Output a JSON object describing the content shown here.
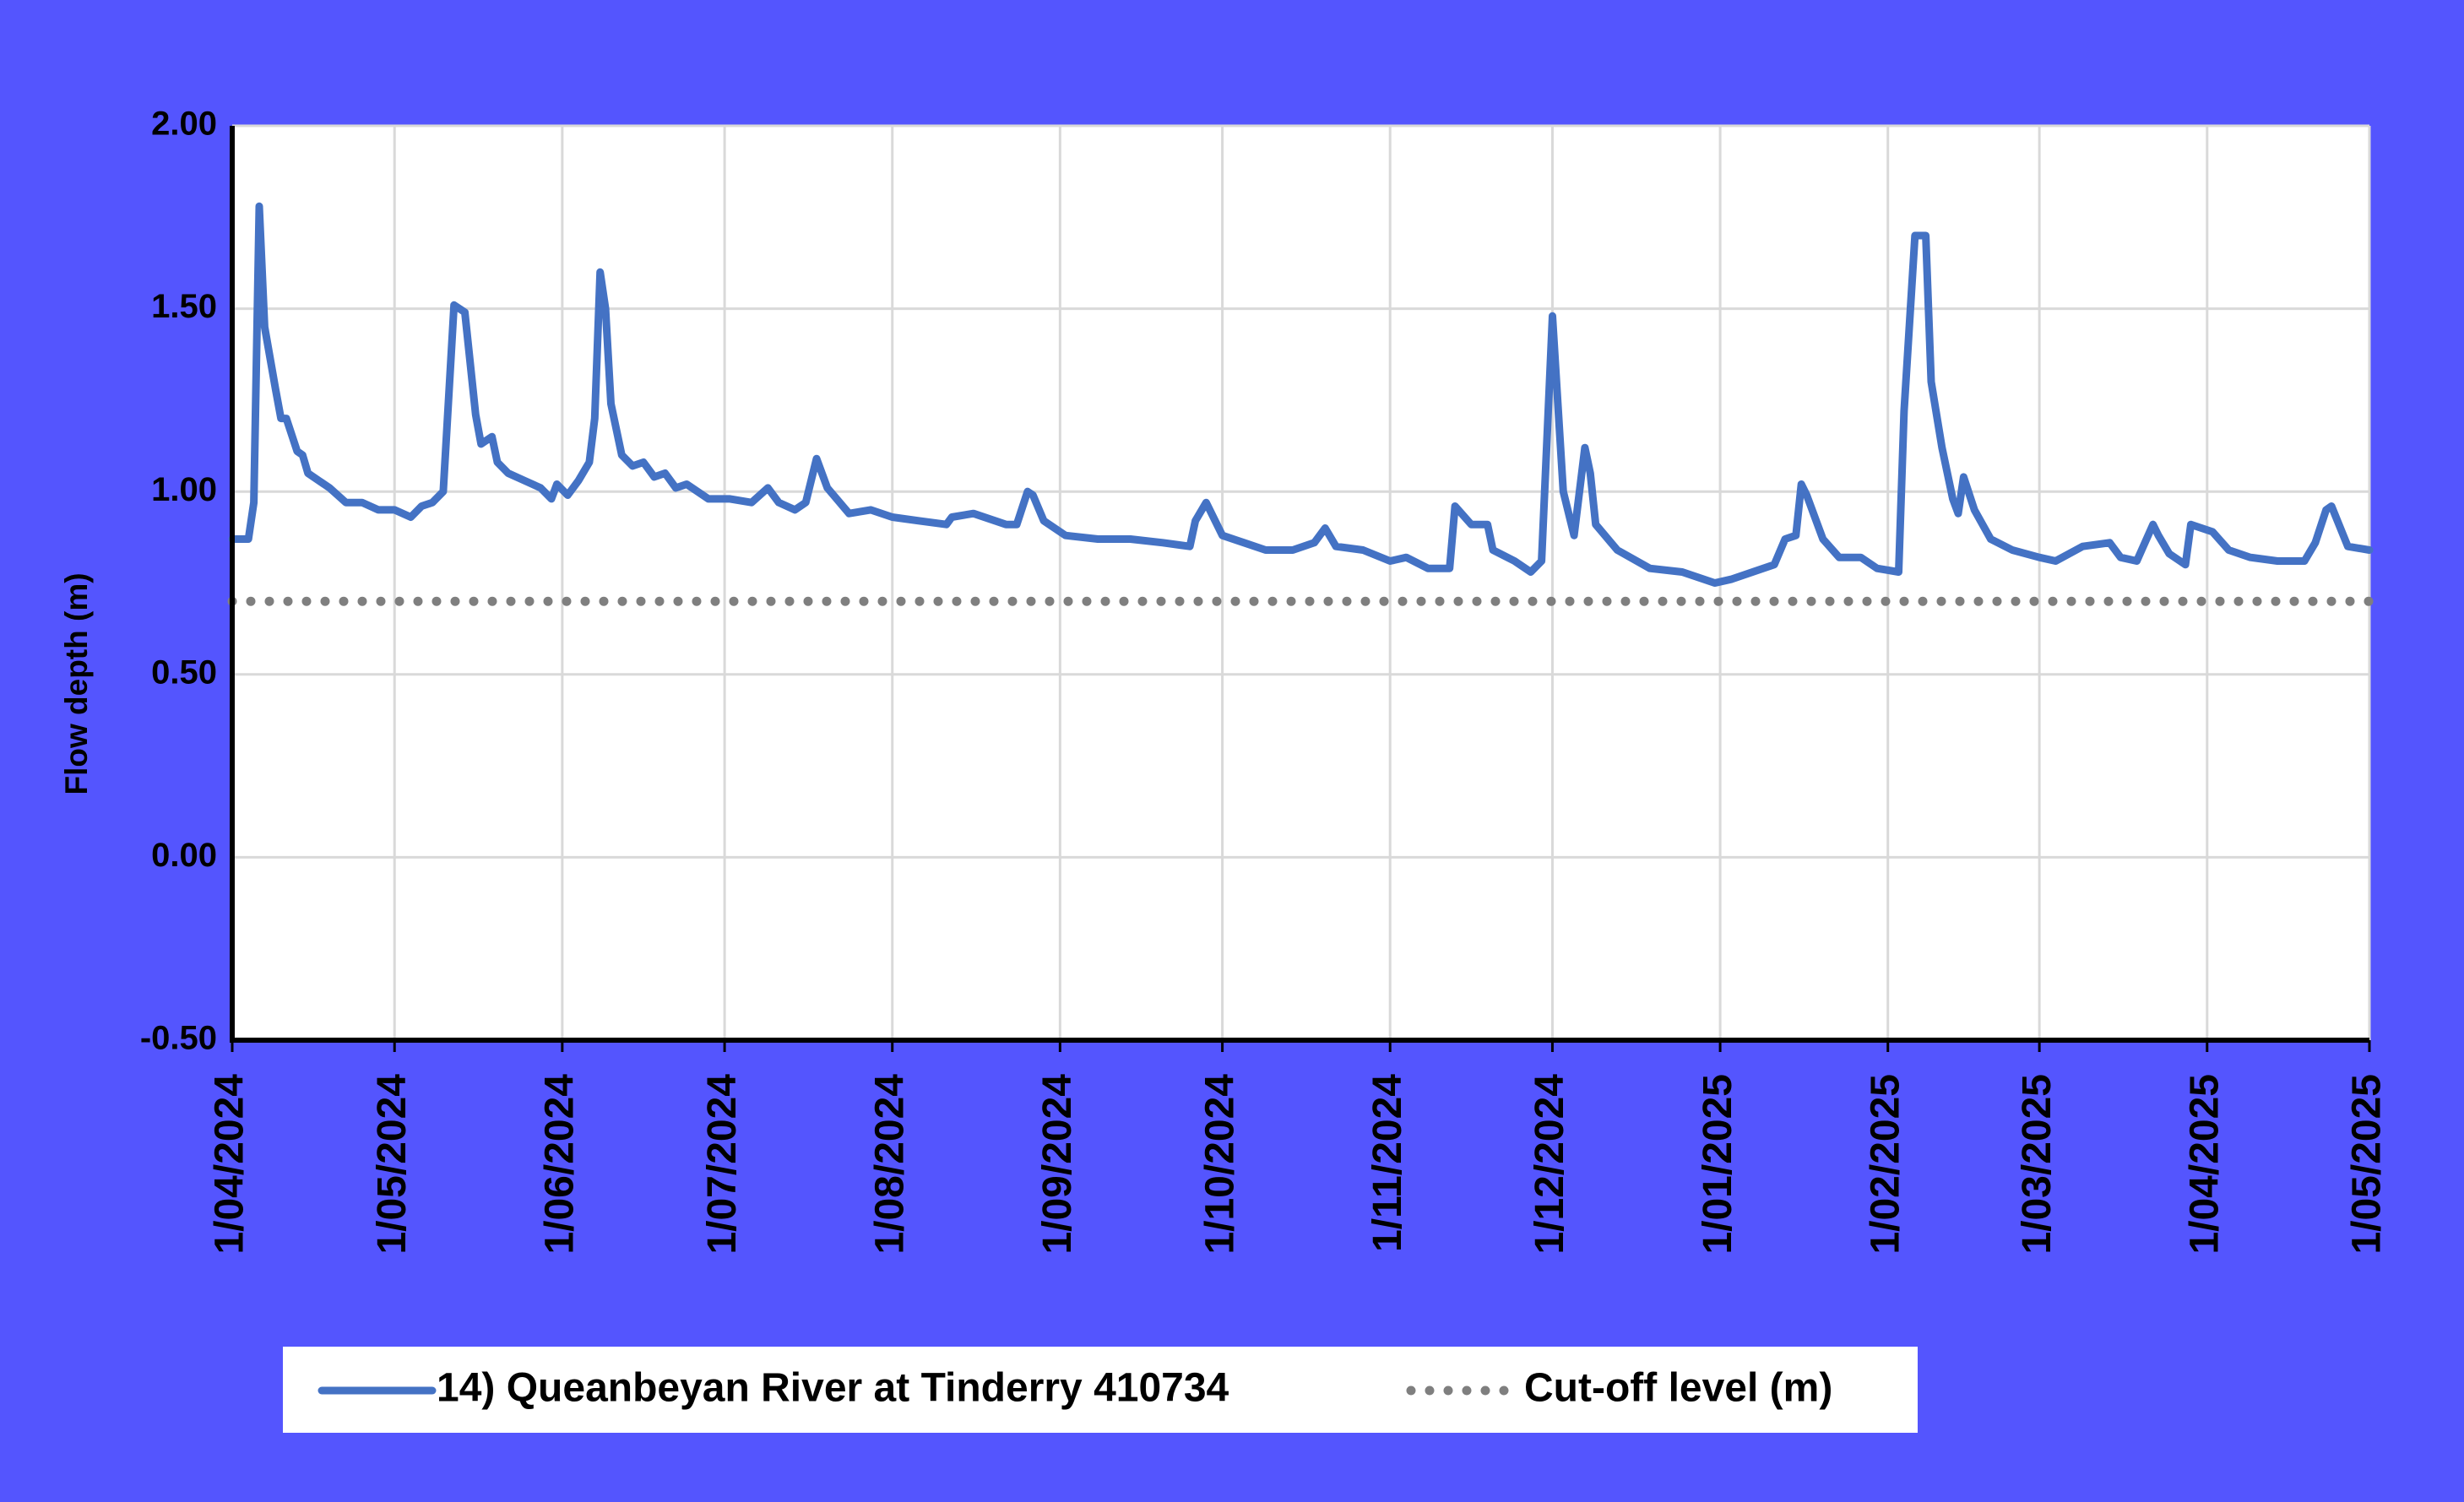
{
  "chart_data": {
    "type": "line",
    "ylabel": "Flow depth (m)",
    "xlim": [
      "1/04/2024",
      "1/05/2025"
    ],
    "xticks": [
      "1/04/2024",
      "1/05/2024",
      "1/06/2024",
      "1/07/2024",
      "1/08/2024",
      "1/09/2024",
      "1/10/2024",
      "1/11/2024",
      "1/12/2024",
      "1/01/2025",
      "1/02/2025",
      "1/03/2025",
      "1/04/2025",
      "1/05/2025"
    ],
    "ylim": [
      -0.5,
      2
    ],
    "yticks": [
      {
        "value": 2,
        "label": "2.00"
      },
      {
        "value": 1.5,
        "label": "1.50"
      },
      {
        "value": 1,
        "label": "1.00"
      },
      {
        "value": 0.5,
        "label": "0.50"
      },
      {
        "value": 0,
        "label": "0.00"
      },
      {
        "value": -0.5,
        "label": "-0.50"
      }
    ],
    "grid": true,
    "legend": "bottom",
    "series": [
      {
        "name": "14) Queanbeyan River at Tinderry 410734",
        "color": "#4472c4",
        "style": "solid",
        "x": [
          "1/04/2024",
          "4/04/2024",
          "5/04/2024",
          "6/04/2024",
          "7/04/2024",
          "9/04/2024",
          "10/04/2024",
          "11/04/2024",
          "13/04/2024",
          "14/04/2024",
          "15/04/2024",
          "19/04/2024",
          "22/04/2024",
          "25/04/2024",
          "28/04/2024",
          "1/05/2024",
          "4/05/2024",
          "6/05/2024",
          "8/05/2024",
          "10/05/2024",
          "12/05/2024",
          "14/05/2024",
          "16/05/2024",
          "17/05/2024",
          "19/05/2024",
          "20/05/2024",
          "22/05/2024",
          "25/05/2024",
          "28/05/2024",
          "30/05/2024",
          "31/05/2024",
          "2/06/2024",
          "4/06/2024",
          "6/06/2024",
          "7/06/2024",
          "8/06/2024",
          "9/06/2024",
          "10/06/2024",
          "12/06/2024",
          "14/06/2024",
          "16/06/2024",
          "18/06/2024",
          "20/06/2024",
          "22/06/2024",
          "24/06/2024",
          "28/06/2024",
          "2/07/2024",
          "6/07/2024",
          "9/07/2024",
          "11/07/2024",
          "14/07/2024",
          "16/07/2024",
          "18/07/2024",
          "20/07/2024",
          "24/07/2024",
          "28/07/2024",
          "1/08/2024",
          "6/08/2024",
          "11/08/2024",
          "12/08/2024",
          "16/08/2024",
          "22/08/2024",
          "24/08/2024",
          "26/08/2024",
          "27/08/2024",
          "29/08/2024",
          "2/09/2024",
          "8/09/2024",
          "14/09/2024",
          "20/09/2024",
          "25/09/2024",
          "26/09/2024",
          "28/09/2024",
          "1/10/2024",
          "5/10/2024",
          "9/10/2024",
          "14/10/2024",
          "18/10/2024",
          "20/10/2024",
          "22/10/2024",
          "27/10/2024",
          "1/11/2024",
          "4/11/2024",
          "8/11/2024",
          "12/11/2024",
          "13/11/2024",
          "16/11/2024",
          "19/11/2024",
          "20/11/2024",
          "24/11/2024",
          "27/11/2024",
          "29/11/2024",
          "1/12/2024",
          "3/12/2024",
          "5/12/2024",
          "7/12/2024",
          "8/12/2024",
          "9/12/2024",
          "13/12/2024",
          "19/12/2024",
          "25/12/2024",
          "31/12/2024",
          "3/01/2025",
          "7/01/2025",
          "11/01/2025",
          "13/01/2025",
          "15/01/2025",
          "16/01/2025",
          "17/01/2025",
          "20/01/2025",
          "23/01/2025",
          "27/01/2025",
          "30/01/2025",
          "3/02/2025",
          "4/02/2025",
          "6/02/2025",
          "8/02/2025",
          "9/02/2025",
          "11/02/2025",
          "13/02/2025",
          "14/02/2025",
          "15/02/2025",
          "17/02/2025",
          "20/02/2025",
          "24/02/2025",
          "1/03/2025",
          "4/03/2025",
          "9/03/2025",
          "14/03/2025",
          "16/03/2025",
          "19/03/2025",
          "22/03/2025",
          "23/03/2025",
          "25/03/2025",
          "28/03/2025",
          "29/03/2025",
          "2/04/2025",
          "5/04/2025",
          "9/04/2025",
          "14/04/2025",
          "19/04/2025",
          "21/04/2025",
          "23/04/2025",
          "24/04/2025",
          "27/04/2025",
          "1/05/2025"
        ],
        "values": [
          0.87,
          0.87,
          0.97,
          1.78,
          1.45,
          1.28,
          1.2,
          1.2,
          1.11,
          1.1,
          1.05,
          1.01,
          0.97,
          0.97,
          0.95,
          0.95,
          0.93,
          0.96,
          0.97,
          1.0,
          1.51,
          1.49,
          1.21,
          1.13,
          1.15,
          1.08,
          1.05,
          1.03,
          1.01,
          0.98,
          1.02,
          0.99,
          1.03,
          1.08,
          1.2,
          1.6,
          1.5,
          1.24,
          1.1,
          1.07,
          1.08,
          1.04,
          1.05,
          1.01,
          1.02,
          0.98,
          0.98,
          0.97,
          1.01,
          0.97,
          0.95,
          0.97,
          1.09,
          1.01,
          0.94,
          0.95,
          0.93,
          0.92,
          0.91,
          0.93,
          0.94,
          0.91,
          0.91,
          1.0,
          0.99,
          0.92,
          0.88,
          0.87,
          0.87,
          0.86,
          0.85,
          0.92,
          0.97,
          0.88,
          0.86,
          0.84,
          0.84,
          0.86,
          0.9,
          0.85,
          0.84,
          0.81,
          0.82,
          0.79,
          0.79,
          0.96,
          0.91,
          0.91,
          0.84,
          0.81,
          0.78,
          0.81,
          1.48,
          1.0,
          0.88,
          1.12,
          1.05,
          0.91,
          0.84,
          0.79,
          0.78,
          0.75,
          0.76,
          0.78,
          0.8,
          0.87,
          0.88,
          1.02,
          0.99,
          0.87,
          0.82,
          0.82,
          0.79,
          0.78,
          1.22,
          1.7,
          1.7,
          1.3,
          1.12,
          0.98,
          0.94,
          1.04,
          0.95,
          0.87,
          0.84,
          0.82,
          0.81,
          0.85,
          0.86,
          0.82,
          0.81,
          0.91,
          0.88,
          0.83,
          0.8,
          0.91,
          0.89,
          0.84,
          0.82,
          0.81,
          0.81,
          0.86,
          0.95,
          0.96,
          0.85,
          0.84
        ]
      },
      {
        "name": "Cut-off level (m)",
        "color": "#7f7f7f",
        "style": "dotted",
        "x": [
          "1/04/2024",
          "1/05/2025"
        ],
        "values": [
          0.7,
          0.7
        ]
      }
    ]
  }
}
